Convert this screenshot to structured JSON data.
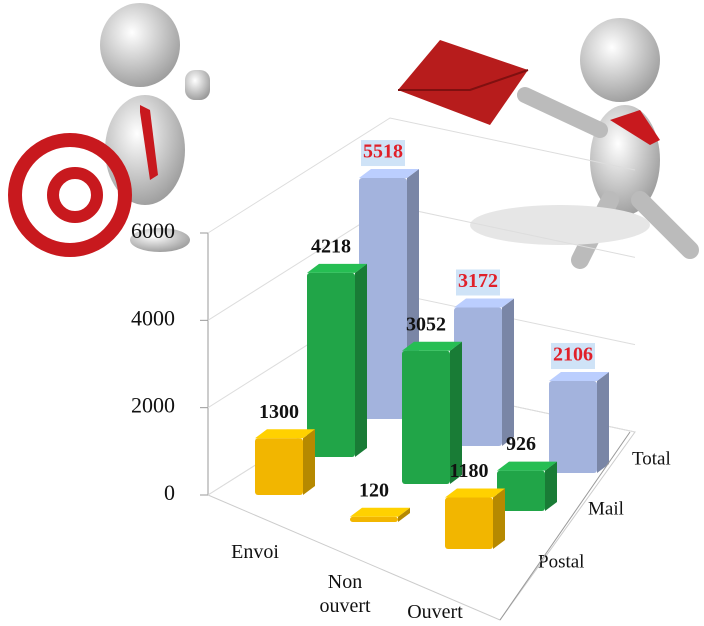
{
  "chart_data": {
    "type": "bar3d",
    "categories": [
      "Envoi",
      "Non ouvert",
      "Ouvert"
    ],
    "series": [
      {
        "name": "Postal",
        "color": "#f2b600",
        "values": [
          1300,
          120,
          1180
        ]
      },
      {
        "name": "Mail",
        "color": "#21a548",
        "values": [
          4218,
          3052,
          926
        ]
      },
      {
        "name": "Total",
        "color": "#a3b3dd",
        "values": [
          5518,
          3172,
          2106
        ]
      }
    ],
    "ylim": [
      0,
      6000
    ],
    "yticks": [
      0,
      2000,
      4000,
      6000
    ],
    "grid": true
  }
}
